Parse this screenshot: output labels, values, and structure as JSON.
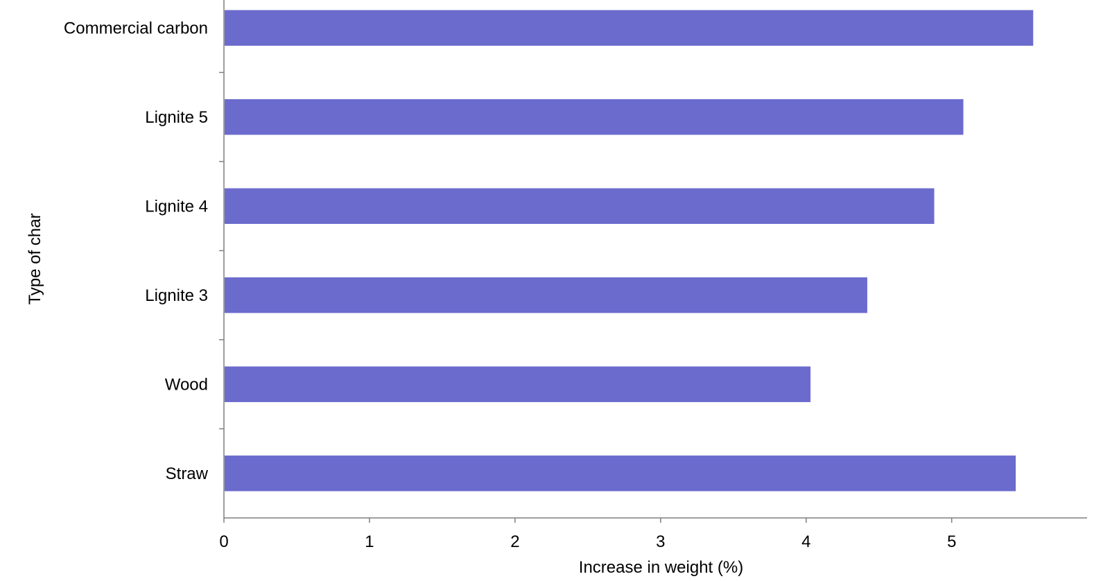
{
  "chart_data": {
    "type": "bar",
    "orientation": "horizontal",
    "title": "",
    "xlabel": "Increase in weight (%)",
    "ylabel": "Type of char",
    "categories": [
      "Commercial carbon",
      "Lignite 5",
      "Lignite 4",
      "Lignite 3",
      "Wood",
      "Straw"
    ],
    "values": [
      5.56,
      5.08,
      4.88,
      4.42,
      4.03,
      5.44
    ],
    "xlim": [
      0,
      5.93
    ],
    "xticks": [
      "0",
      "1",
      "2",
      "3",
      "4",
      "5"
    ],
    "grid": false,
    "legend": "none",
    "bar_color": "#6b6bcd",
    "axis_color": "#7f7f7f"
  }
}
